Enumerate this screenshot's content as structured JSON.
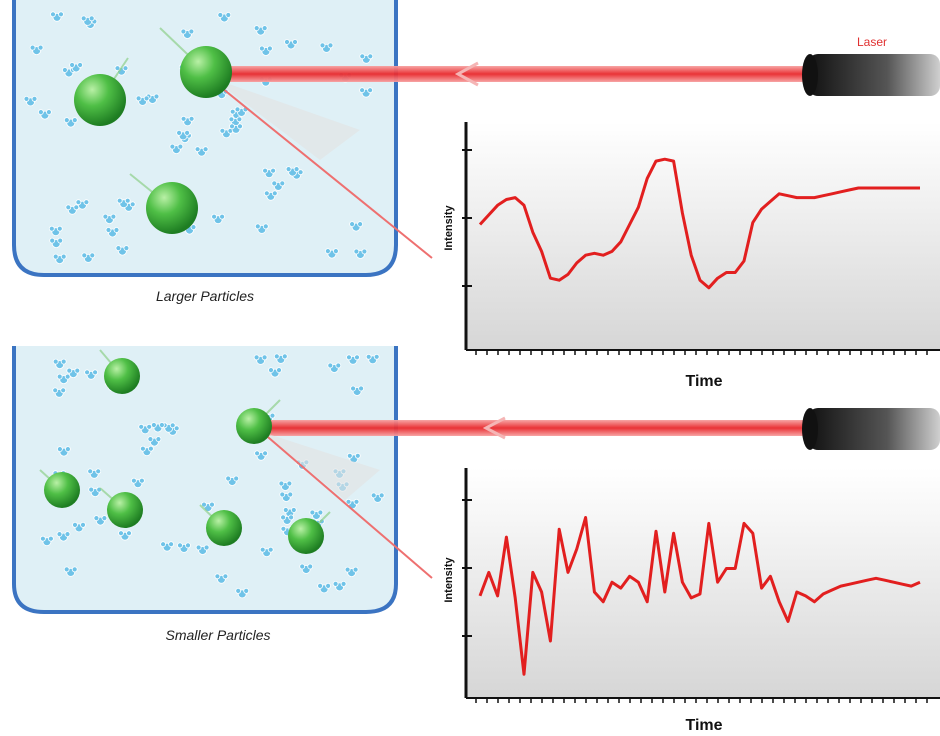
{
  "laser_label": "Laser",
  "colors": {
    "beam": "#e8282c",
    "trace": "#e21f1f",
    "container_fill": "#dff0f6",
    "container_stroke": "#3b74c2",
    "particle": "#3faf3f",
    "solvent": "#6fc3e8"
  },
  "icons": [
    "laser-source-icon",
    "beam-arrow-icon",
    "particle-icon",
    "solvent-molecule-icon"
  ],
  "panels": [
    {
      "caption": "Larger Particles",
      "chart_data": {
        "type": "line",
        "xlabel": "Time",
        "ylabel": "Intensity",
        "grid": false,
        "ylim": [
          0,
          1
        ],
        "x": [
          0,
          2,
          4,
          6,
          8,
          10,
          12,
          14,
          16,
          18,
          20,
          22,
          24,
          26,
          28,
          30,
          32,
          34,
          36,
          38,
          40,
          42,
          44,
          46,
          48,
          50,
          52,
          54,
          56,
          58,
          60,
          62,
          64,
          66,
          68,
          70,
          72,
          74,
          76,
          78,
          80,
          82,
          84,
          86,
          88,
          90,
          92,
          94,
          96,
          98,
          100
        ],
        "values": [
          0.56,
          0.61,
          0.66,
          0.69,
          0.7,
          0.66,
          0.52,
          0.42,
          0.28,
          0.27,
          0.3,
          0.36,
          0.4,
          0.41,
          0.4,
          0.42,
          0.47,
          0.56,
          0.65,
          0.8,
          0.89,
          0.9,
          0.89,
          0.62,
          0.4,
          0.27,
          0.23,
          0.28,
          0.31,
          0.31,
          0.37,
          0.57,
          0.64,
          0.68,
          0.72,
          0.71,
          0.7,
          0.7,
          0.7,
          0.71,
          0.72,
          0.73,
          0.74,
          0.75,
          0.75,
          0.75,
          0.75,
          0.75,
          0.75,
          0.75,
          0.75
        ]
      }
    },
    {
      "caption": "Smaller Particles",
      "chart_data": {
        "type": "line",
        "xlabel": "Time",
        "ylabel": "Intensity",
        "grid": false,
        "ylim": [
          0,
          1
        ],
        "x": [
          0,
          2,
          4,
          6,
          8,
          10,
          12,
          14,
          16,
          18,
          20,
          22,
          24,
          26,
          28,
          30,
          32,
          34,
          36,
          38,
          40,
          42,
          44,
          46,
          48,
          50,
          52,
          54,
          56,
          58,
          60,
          62,
          64,
          66,
          68,
          70,
          72,
          74,
          76,
          78,
          80,
          82,
          84,
          86,
          88,
          90,
          92,
          94,
          96,
          98,
          100
        ],
        "values": [
          0.48,
          0.6,
          0.48,
          0.78,
          0.47,
          0.08,
          0.6,
          0.5,
          0.25,
          0.82,
          0.6,
          0.72,
          0.88,
          0.5,
          0.45,
          0.55,
          0.52,
          0.58,
          0.55,
          0.45,
          0.81,
          0.5,
          0.8,
          0.55,
          0.47,
          0.49,
          0.85,
          0.55,
          0.62,
          0.62,
          0.85,
          0.8,
          0.52,
          0.58,
          0.45,
          0.35,
          0.5,
          0.48,
          0.45,
          0.49,
          0.51,
          0.53,
          0.54,
          0.55,
          0.56,
          0.57,
          0.56,
          0.55,
          0.54,
          0.53,
          0.55
        ]
      }
    }
  ]
}
